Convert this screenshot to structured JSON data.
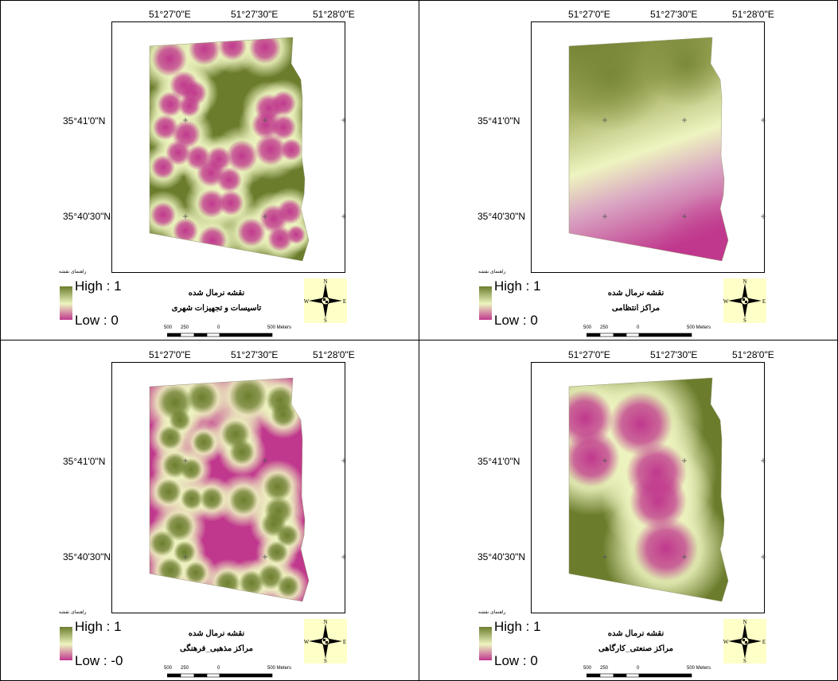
{
  "panels": [
    {
      "id": "urban",
      "top_ticks": [
        "51°27'0\"E",
        "51°27'30\"E",
        "51°28'0\"E"
      ],
      "left_ticks": [
        "35°41'0\"N",
        "35°40'30\"N"
      ],
      "legend_title": "راهنمای نقشه",
      "high_label": "High : 1",
      "low_label": "Low : 0",
      "caption_line1": "نقشه نرمال شده",
      "caption_line2": "تاسیسات و تجهیزات شهری",
      "scale_labels": [
        "500",
        "250",
        "0",
        "500 Meters"
      ],
      "surface": "many-low-spots",
      "colors": {
        "high": "#6b7d2d",
        "mid": "#eef4c0",
        "low": "#c0388d"
      }
    },
    {
      "id": "disciplinary",
      "top_ticks": [
        "51°27'0\"E",
        "51°27'30\"E",
        "51°28'0\"E"
      ],
      "left_ticks": [
        "35°41'0\"N",
        "35°40'30\"N"
      ],
      "legend_title": "راهنمای نقشه",
      "high_label": "High : 1",
      "low_label": "Low : 0",
      "caption_line1": "نقشه نرمال شده",
      "caption_line2": "مراکز انتظامی",
      "scale_labels": [
        "500",
        "250",
        "0",
        "500 Meters"
      ],
      "surface": "north-high-south-low",
      "colors": {
        "high": "#6b7d2d",
        "mid": "#eef4c0",
        "low": "#c0388d"
      }
    },
    {
      "id": "religious",
      "top_ticks": [
        "51°27'0\"E",
        "51°27'30\"E",
        "51°28'0\"E"
      ],
      "left_ticks": [
        "35°41'0\"N",
        "35°40'30\"N"
      ],
      "legend_title": "راهنمای نقشه",
      "high_label": "High : 1",
      "low_label": "Low : -0",
      "caption_line1": "نقشه نرمال شده",
      "caption_line2": "مراکز مذهبی_فرهنگی",
      "scale_labels": [
        "500",
        "250",
        "0",
        "500 Meters"
      ],
      "surface": "many-high-spots",
      "colors": {
        "high": "#6b7d2d",
        "mid": "#eef4c0",
        "low": "#c0388d"
      }
    },
    {
      "id": "industrial",
      "top_ticks": [
        "51°27'0\"E",
        "51°27'30\"E",
        "51°28'0\"E"
      ],
      "left_ticks": [
        "35°41'0\"N",
        "35°40'30\"N"
      ],
      "legend_title": "راهنمای نقشه",
      "high_label": "High : 1",
      "low_label": "Low : 0",
      "caption_line1": "نقشه نرمال شده",
      "caption_line2": "مراکز صنعتی_کارگاهی",
      "scale_labels": [
        "500",
        "250",
        "0",
        "500 Meters"
      ],
      "surface": "few-large-low-spots",
      "colors": {
        "high": "#6b7d2d",
        "mid": "#eef4c0",
        "low": "#c0388d"
      }
    }
  ],
  "north_arrow": {
    "n": "N",
    "s": "S",
    "e": "E",
    "w": "W"
  }
}
